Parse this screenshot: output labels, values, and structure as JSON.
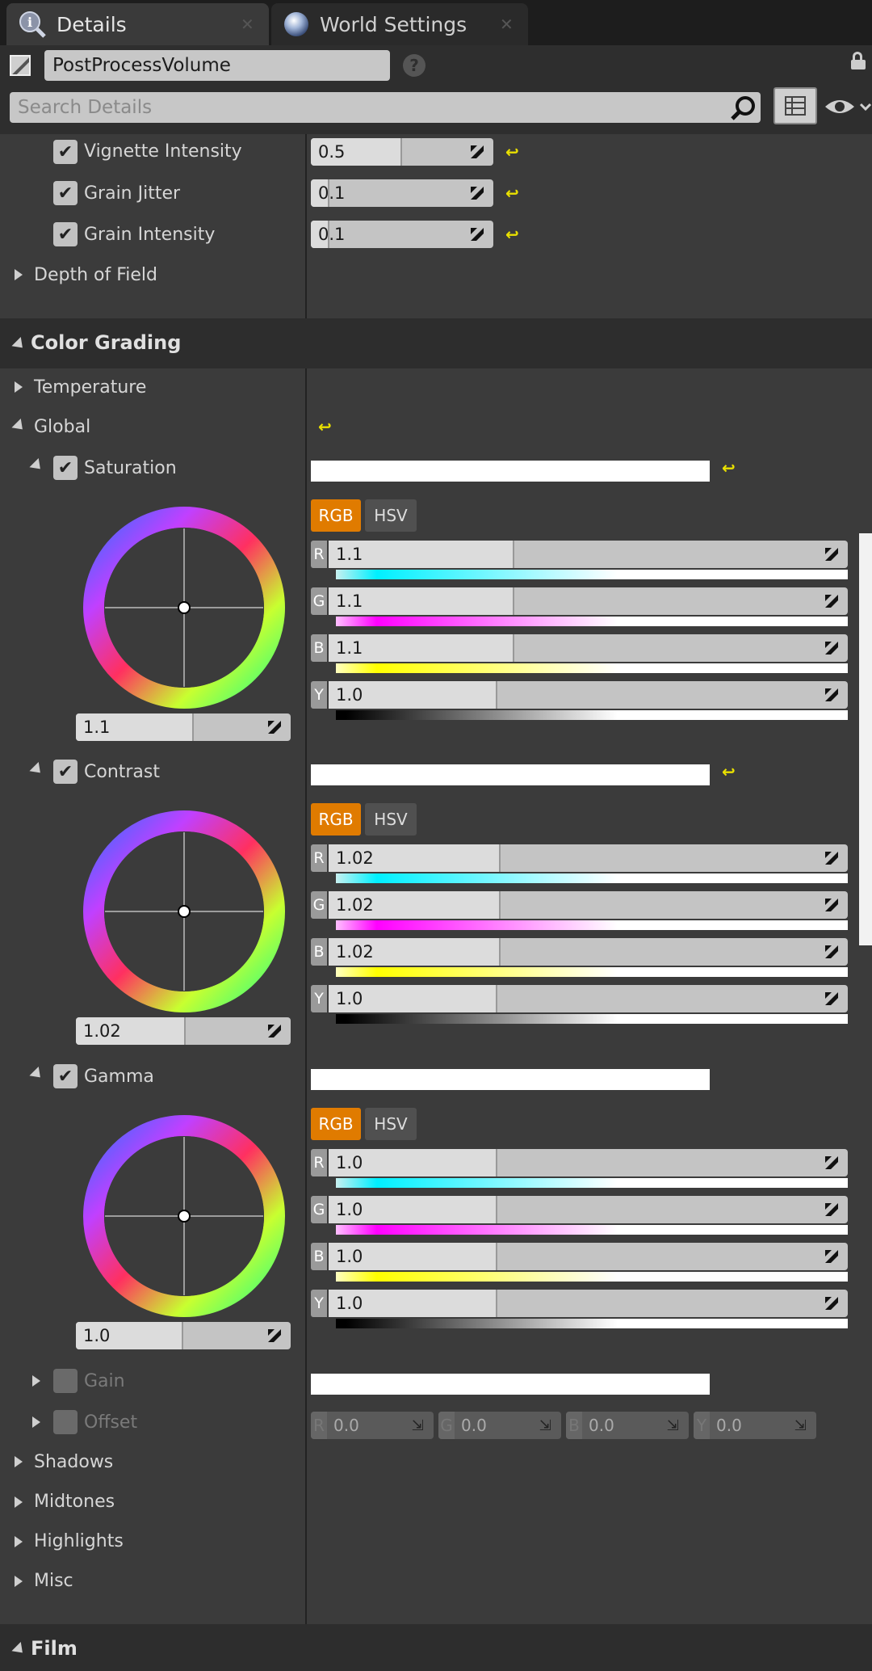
{
  "tabs": [
    {
      "label": "Details"
    },
    {
      "label": "World Settings"
    }
  ],
  "header": {
    "object_name": "PostProcessVolume",
    "search_placeholder": "Search Details"
  },
  "film_rows": [
    {
      "label": "Vignette Intensity",
      "value": "0.5",
      "fill": 0.5
    },
    {
      "label": "Grain Jitter",
      "value": "0.1",
      "fill": 0.1
    },
    {
      "label": "Grain Intensity",
      "value": "0.1",
      "fill": 0.1
    }
  ],
  "depth_of_field": "Depth of Field",
  "color_grading": {
    "title": "Color Grading",
    "temperature": "Temperature",
    "global": "Global",
    "mode_rgb": "RGB",
    "mode_hsv": "HSV",
    "groups": [
      {
        "label": "Saturation",
        "wheel_value": "1.1",
        "wheel_fill": 0.55,
        "channels": [
          {
            "ch": "R",
            "value": "1.1",
            "fill": 0.55
          },
          {
            "ch": "G",
            "value": "1.1",
            "fill": 0.55
          },
          {
            "ch": "B",
            "value": "1.1",
            "fill": 0.55
          },
          {
            "ch": "Y",
            "value": "1.0",
            "fill": 0.5
          }
        ]
      },
      {
        "label": "Contrast",
        "wheel_value": "1.02",
        "wheel_fill": 0.51,
        "channels": [
          {
            "ch": "R",
            "value": "1.02",
            "fill": 0.51
          },
          {
            "ch": "G",
            "value": "1.02",
            "fill": 0.51
          },
          {
            "ch": "B",
            "value": "1.02",
            "fill": 0.51
          },
          {
            "ch": "Y",
            "value": "1.0",
            "fill": 0.5
          }
        ]
      },
      {
        "label": "Gamma",
        "wheel_value": "1.0",
        "wheel_fill": 0.5,
        "channels": [
          {
            "ch": "R",
            "value": "1.0",
            "fill": 0.5
          },
          {
            "ch": "G",
            "value": "1.0",
            "fill": 0.5
          },
          {
            "ch": "B",
            "value": "1.0",
            "fill": 0.5
          },
          {
            "ch": "Y",
            "value": "1.0",
            "fill": 0.5
          }
        ]
      }
    ],
    "gain": "Gain",
    "offset": {
      "label": "Offset",
      "values": [
        {
          "ch": "R",
          "value": "0.0"
        },
        {
          "ch": "G",
          "value": "0.0"
        },
        {
          "ch": "B",
          "value": "0.0"
        },
        {
          "ch": "Y",
          "value": "0.0"
        }
      ]
    },
    "collapsed": [
      "Shadows",
      "Midtones",
      "Highlights",
      "Misc"
    ]
  },
  "film": "Film",
  "colors": {
    "accent": "#e07b00",
    "reset": "#e9e000",
    "panel": "#3b3b3b"
  }
}
